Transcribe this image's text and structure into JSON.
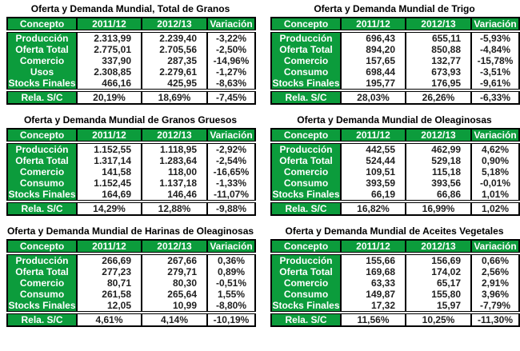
{
  "colors": {
    "green": "#0c9c3c",
    "text_dark": "#1f1f1f",
    "border": "#000000",
    "label_text": "#ffffff",
    "background": "#ffffff"
  },
  "tables": [
    {
      "title": "Oferta y Demanda Mundial, Total de Granos",
      "headers": [
        "Concepto",
        "2011/12",
        "2012/13",
        "Variación"
      ],
      "rows": [
        [
          "Producción",
          "2.313,99",
          "2.239,40",
          "-3,22%"
        ],
        [
          "Oferta Total",
          "2.775,01",
          "2.705,56",
          "-2,50%"
        ],
        [
          "Comercio",
          "337,90",
          "287,35",
          "-14,96%"
        ],
        [
          "Usos",
          "2.308,85",
          "2.279,61",
          "-1,27%"
        ],
        [
          "Stocks Finales",
          "466,16",
          "425,95",
          "-8,63%"
        ]
      ],
      "summary": [
        "Rela. S/C",
        "20,19%",
        "18,69%",
        "-7,45%"
      ]
    },
    {
      "title": "Oferta y Demanda Mundial de Trigo",
      "headers": [
        "Concepto",
        "2011/12",
        "2012/13",
        "Variación"
      ],
      "rows": [
        [
          "Producción",
          "696,43",
          "655,11",
          "-5,93%"
        ],
        [
          "Oferta Total",
          "894,20",
          "850,88",
          "-4,84%"
        ],
        [
          "Comercio",
          "157,65",
          "132,77",
          "-15,78%"
        ],
        [
          "Consumo",
          "698,44",
          "673,93",
          "-3,51%"
        ],
        [
          "Stocks Finales",
          "195,77",
          "176,95",
          "-9,61%"
        ]
      ],
      "summary": [
        "Rela. S/C",
        "28,03%",
        "26,26%",
        "-6,33%"
      ]
    },
    {
      "title": "Oferta y Demanda Mundial de Granos Gruesos",
      "headers": [
        "Concepto",
        "2011/12",
        "2012/13",
        "Variación"
      ],
      "rows": [
        [
          "Producción",
          "1.152,55",
          "1.118,95",
          "-2,92%"
        ],
        [
          "Oferta Total",
          "1.317,14",
          "1.283,64",
          "-2,54%"
        ],
        [
          "Comercio",
          "141,58",
          "118,00",
          "-16,65%"
        ],
        [
          "Consumo",
          "1.152,45",
          "1.137,18",
          "-1,33%"
        ],
        [
          "Stocks Finales",
          "164,69",
          "146,46",
          "-11,07%"
        ]
      ],
      "summary": [
        "Rela. S/C",
        "14,29%",
        "12,88%",
        "-9,88%"
      ]
    },
    {
      "title": "Oferta y Demanda Mundial de Oleaginosas",
      "headers": [
        "Concepto",
        "2011/12",
        "2012/13",
        "Variación"
      ],
      "rows": [
        [
          "Producción",
          "442,55",
          "462,99",
          "4,62%"
        ],
        [
          "Oferta Total",
          "524,44",
          "529,18",
          "0,90%"
        ],
        [
          "Comercio",
          "109,51",
          "115,18",
          "5,18%"
        ],
        [
          "Consumo",
          "393,59",
          "393,56",
          "-0,01%"
        ],
        [
          "Stocks Finales",
          "66,19",
          "66,86",
          "1,01%"
        ]
      ],
      "summary": [
        "Rela. S/C",
        "16,82%",
        "16,99%",
        "1,02%"
      ]
    },
    {
      "title": "Oferta y Demanda Mundial de Harinas de Oleaginosas",
      "headers": [
        "Concepto",
        "2011/12",
        "2012/13",
        "Variación"
      ],
      "rows": [
        [
          "Producción",
          "266,69",
          "267,66",
          "0,36%"
        ],
        [
          "Oferta Total",
          "277,23",
          "279,71",
          "0,89%"
        ],
        [
          "Comercio",
          "80,71",
          "80,30",
          "-0,51%"
        ],
        [
          "Consumo",
          "261,58",
          "265,64",
          "1,55%"
        ],
        [
          "Stocks Finales",
          "12,05",
          "10,99",
          "-8,80%"
        ]
      ],
      "summary": [
        "Rela. S/C",
        "4,61%",
        "4,14%",
        "-10,19%"
      ]
    },
    {
      "title": "Oferta y Demanda Mundial de Aceites Vegetales",
      "headers": [
        "Concepto",
        "2011/12",
        "2012/13",
        "Variación"
      ],
      "rows": [
        [
          "Producción",
          "155,66",
          "156,69",
          "0,66%"
        ],
        [
          "Oferta Total",
          "169,68",
          "174,02",
          "2,56%"
        ],
        [
          "Comercio",
          "63,33",
          "65,17",
          "2,91%"
        ],
        [
          "Consumo",
          "149,87",
          "155,80",
          "3,96%"
        ],
        [
          "Stocks Finales",
          "17,32",
          "15,97",
          "-7,79%"
        ]
      ],
      "summary": [
        "Rela. S/C",
        "11,56%",
        "10,25%",
        "-11,30%"
      ]
    }
  ]
}
